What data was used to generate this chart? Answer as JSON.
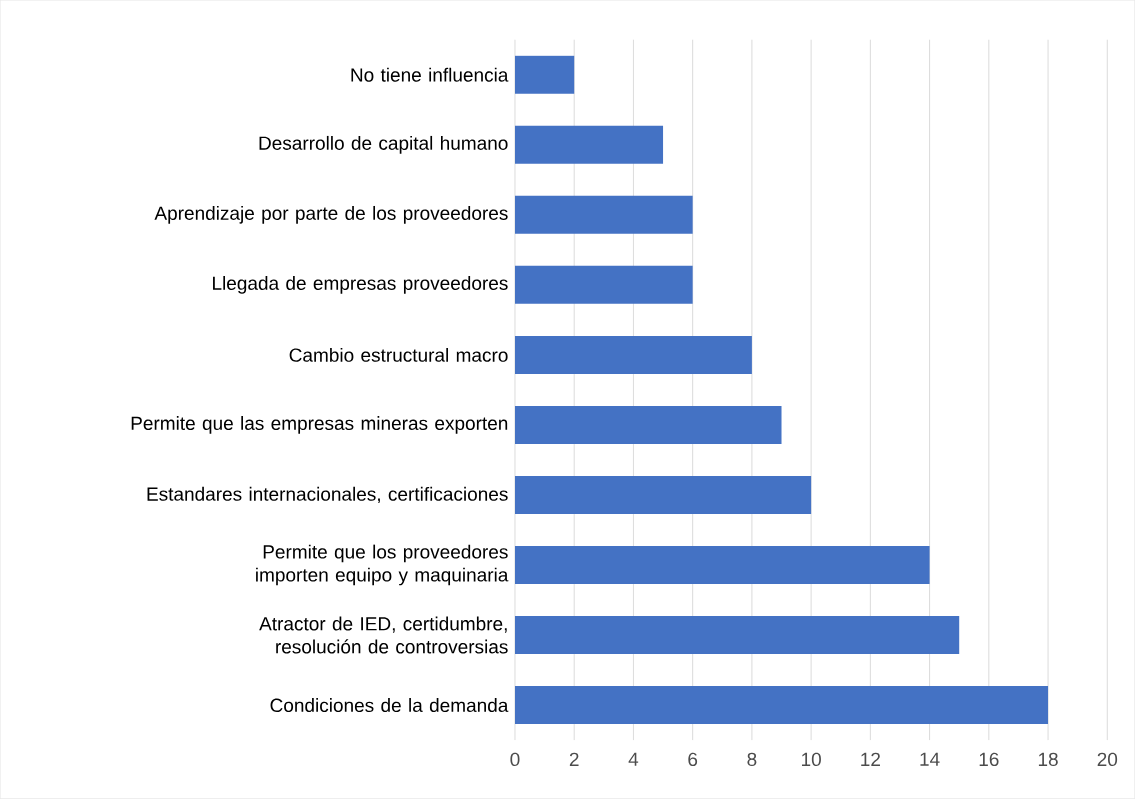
{
  "chart_data": {
    "type": "bar",
    "orientation": "horizontal",
    "categories": [
      "No tiene influencia",
      "Desarrollo de capital humano",
      "Aprendizaje por parte de los proveedores",
      "Llegada de empresas proveedores",
      "Cambio estructural macro",
      "Permite que las empresas mineras exporten",
      "Estandares internacionales, certificaciones",
      "Permite que los proveedores importen equipo y maquinaria",
      "Atractor de IED, certidumbre, resolución de controversias",
      "Condiciones de la demanda"
    ],
    "values": [
      2,
      5,
      6,
      6,
      8,
      9,
      10,
      14,
      15,
      18
    ],
    "color": "#4472c4",
    "xlim": [
      0,
      20
    ],
    "xticks": [
      0,
      2,
      4,
      6,
      8,
      10,
      12,
      14,
      16,
      18,
      20
    ],
    "grid": "x"
  }
}
